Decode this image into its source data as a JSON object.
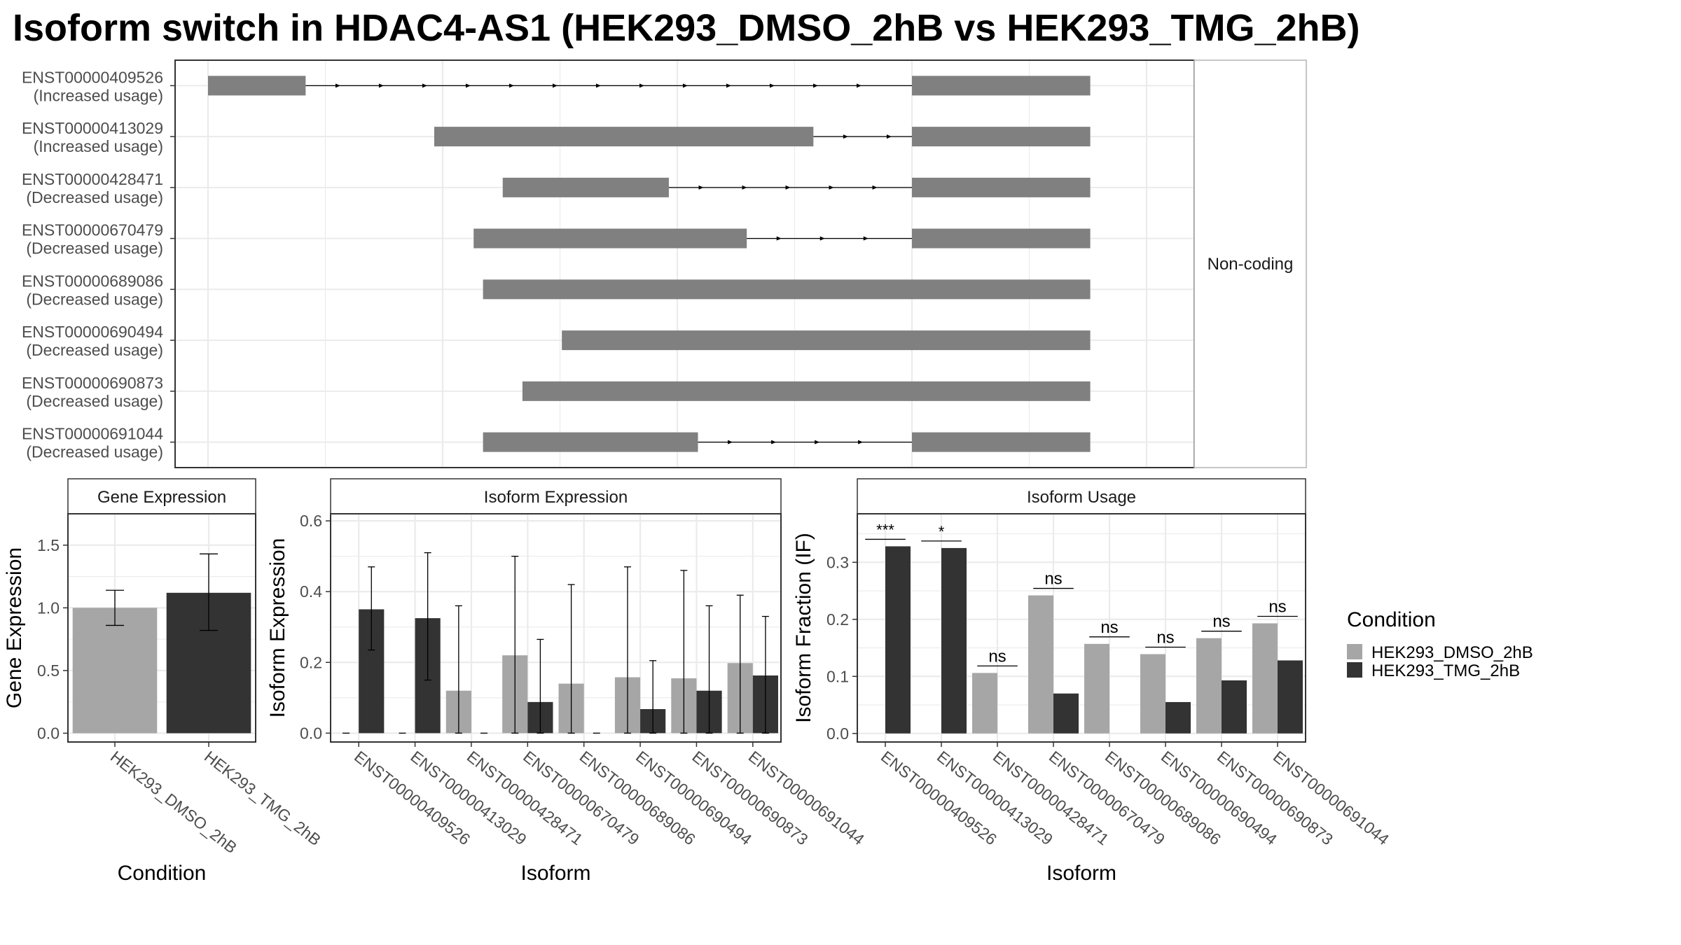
{
  "title": "Isoform switch in HDAC4-AS1 (HEK293_DMSO_2hB vs HEK293_TMG_2hB)",
  "colors": {
    "dmso": "#a6a6a6",
    "tmg": "#333333",
    "exon": "#808080",
    "grid": "#ebebeb",
    "axis_text": "#4d4d4d",
    "strip_fill": "#ffffff"
  },
  "legend": {
    "title": "Condition",
    "items": [
      {
        "label": "HEK293_DMSO_2hB",
        "color": "#a6a6a6"
      },
      {
        "label": "HEK293_TMG_2hB",
        "color": "#333333"
      }
    ]
  },
  "chart_data": [
    {
      "type": "transcript-structure",
      "strip_label": "Non-coding",
      "x_gridlines": [
        0.0,
        0.125,
        0.25,
        0.375,
        0.5,
        0.625,
        0.75,
        0.875,
        1.0
      ],
      "transcripts": [
        {
          "id": "ENST00000409526",
          "status": "(Increased usage)",
          "exons": [
            [
              0.0,
              0.104
            ],
            [
              0.75,
              0.94
            ]
          ]
        },
        {
          "id": "ENST00000413029",
          "status": "(Increased usage)",
          "exons": [
            [
              0.241,
              0.645
            ],
            [
              0.75,
              0.94
            ]
          ]
        },
        {
          "id": "ENST00000428471",
          "status": "(Decreased usage)",
          "exons": [
            [
              0.314,
              0.491
            ],
            [
              0.75,
              0.94
            ]
          ]
        },
        {
          "id": "ENST00000670479",
          "status": "(Decreased usage)",
          "exons": [
            [
              0.283,
              0.574
            ],
            [
              0.75,
              0.94
            ]
          ]
        },
        {
          "id": "ENST00000689086",
          "status": "(Decreased usage)",
          "exons": [
            [
              0.293,
              0.94
            ]
          ]
        },
        {
          "id": "ENST00000690494",
          "status": "(Decreased usage)",
          "exons": [
            [
              0.377,
              0.94
            ]
          ]
        },
        {
          "id": "ENST00000690873",
          "status": "(Decreased usage)",
          "exons": [
            [
              0.335,
              0.94
            ]
          ]
        },
        {
          "id": "ENST00000691044",
          "status": "(Decreased usage)",
          "exons": [
            [
              0.293,
              0.522
            ],
            [
              0.75,
              0.94
            ]
          ]
        }
      ]
    },
    {
      "type": "bar",
      "panel_title": "Gene Expression",
      "xlabel": "Condition",
      "ylabel": "Gene Expression",
      "ylim": [
        -0.07,
        1.75
      ],
      "yticks": [
        0.0,
        0.5,
        1.0,
        1.5
      ],
      "ytick_labels": [
        "0.0",
        "0.5",
        "1.0",
        "1.5"
      ],
      "categories": [
        "HEK293_DMSO_2hB",
        "HEK293_TMG_2hB"
      ],
      "values": [
        1.0,
        1.12
      ],
      "err_low": [
        0.86,
        0.82
      ],
      "err_high": [
        1.14,
        1.43
      ],
      "colors": [
        "#a6a6a6",
        "#333333"
      ]
    },
    {
      "type": "bar",
      "panel_title": "Isoform Expression",
      "xlabel": "Isoform",
      "ylabel": "Isoform Expression",
      "ylim": [
        -0.025,
        0.62
      ],
      "yticks": [
        0.0,
        0.2,
        0.4,
        0.6
      ],
      "ytick_labels": [
        "0.0",
        "0.2",
        "0.4",
        "0.6"
      ],
      "categories": [
        "ENST00000409526",
        "ENST00000413029",
        "ENST00000428471",
        "ENST00000670479",
        "ENST00000689086",
        "ENST00000690494",
        "ENST00000690873",
        "ENST00000691044"
      ],
      "series": [
        {
          "name": "HEK293_DMSO_2hB",
          "values": [
            0.0,
            0.0,
            0.12,
            0.22,
            0.14,
            0.158,
            0.155,
            0.198
          ],
          "err_low": [
            0.0,
            0.0,
            0.0,
            0.0,
            0.0,
            0.0,
            0.0,
            0.0
          ],
          "err_high": [
            0.0,
            0.0,
            0.36,
            0.5,
            0.42,
            0.47,
            0.46,
            0.39
          ]
        },
        {
          "name": "HEK293_TMG_2hB",
          "values": [
            0.35,
            0.325,
            0.0,
            0.088,
            0.0,
            0.068,
            0.12,
            0.163
          ],
          "err_low": [
            0.235,
            0.15,
            0.0,
            0.0,
            0.0,
            0.0,
            0.0,
            0.0
          ],
          "err_high": [
            0.47,
            0.51,
            0.0,
            0.265,
            0.0,
            0.205,
            0.36,
            0.33
          ]
        }
      ]
    },
    {
      "type": "bar",
      "panel_title": "Isoform Usage",
      "xlabel": "Isoform",
      "ylabel": "Isoform Fraction (IF)",
      "ylim": [
        -0.015,
        0.385
      ],
      "yticks": [
        0.0,
        0.1,
        0.2,
        0.3
      ],
      "ytick_labels": [
        "0.0",
        "0.1",
        "0.2",
        "0.3"
      ],
      "categories": [
        "ENST00000409526",
        "ENST00000413029",
        "ENST00000428471",
        "ENST00000670479",
        "ENST00000689086",
        "ENST00000690494",
        "ENST00000690873",
        "ENST00000691044"
      ],
      "series": [
        {
          "name": "HEK293_DMSO_2hB",
          "values": [
            0.0,
            0.0,
            0.106,
            0.242,
            0.157,
            0.139,
            0.167,
            0.193
          ]
        },
        {
          "name": "HEK293_TMG_2hB",
          "values": [
            0.328,
            0.325,
            0.0,
            0.07,
            0.0,
            0.055,
            0.093,
            0.128
          ]
        }
      ],
      "significance": [
        "***",
        "*",
        "ns",
        "ns",
        "ns",
        "ns",
        "ns",
        "ns"
      ]
    }
  ]
}
